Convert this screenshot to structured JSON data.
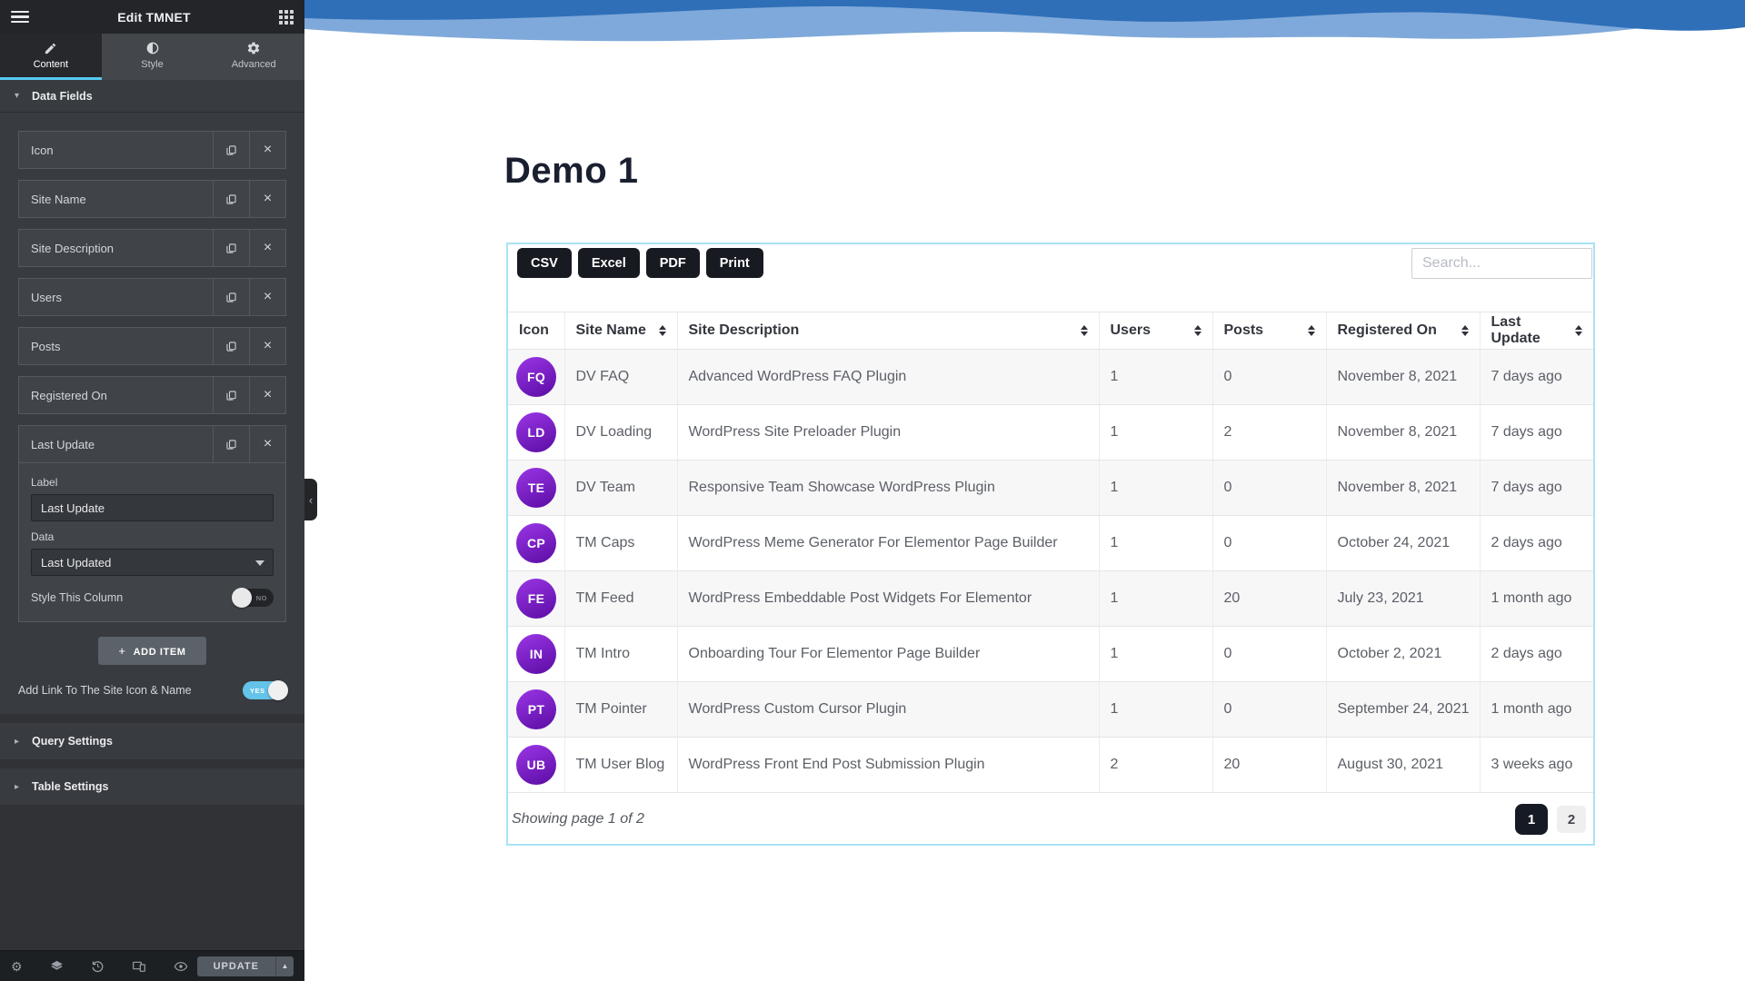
{
  "panel": {
    "title": "Edit TMNET",
    "tabs": [
      {
        "label": "Content",
        "icon": "pencil-icon",
        "active": true
      },
      {
        "label": "Style",
        "icon": "style-icon",
        "active": false
      },
      {
        "label": "Advanced",
        "icon": "gear-icon",
        "active": false
      }
    ],
    "data_fields_section": "Data Fields",
    "field_items": [
      "Icon",
      "Site Name",
      "Site Description",
      "Users",
      "Posts",
      "Registered On"
    ],
    "expanded_item": {
      "title": "Last Update",
      "label_field_label": "Label",
      "label_field_value": "Last Update",
      "data_field_label": "Data",
      "data_field_value": "Last Updated",
      "style_column_label": "Style This Column",
      "style_column_toggle": "NO"
    },
    "add_item_button": "ADD ITEM",
    "link_row": {
      "label": "Add Link To The Site Icon & Name",
      "toggle": "YES"
    },
    "collapsed_sections": [
      "Query Settings",
      "Table Settings"
    ],
    "footer": {
      "update_button": "UPDATE"
    }
  },
  "preview": {
    "heading": "Demo 1",
    "widget": {
      "export_buttons": [
        "CSV",
        "Excel",
        "PDF",
        "Print"
      ],
      "search_placeholder": "Search...",
      "columns": [
        {
          "label": "Icon",
          "sortable": false
        },
        {
          "label": "Site Name",
          "sortable": true
        },
        {
          "label": "Site Description",
          "sortable": true
        },
        {
          "label": "Users",
          "sortable": true
        },
        {
          "label": "Posts",
          "sortable": true
        },
        {
          "label": "Registered On",
          "sortable": true
        },
        {
          "label": "Last Update",
          "sortable": true
        }
      ],
      "rows": [
        {
          "initials": "FQ",
          "site_name": "DV FAQ",
          "description": "Advanced WordPress FAQ Plugin",
          "users": "1",
          "posts": "0",
          "registered_on": "November 8, 2021",
          "last_update": "7 days ago"
        },
        {
          "initials": "LD",
          "site_name": "DV Loading",
          "description": "WordPress Site Preloader Plugin",
          "users": "1",
          "posts": "2",
          "registered_on": "November 8, 2021",
          "last_update": "7 days ago"
        },
        {
          "initials": "TE",
          "site_name": "DV Team",
          "description": "Responsive Team Showcase WordPress Plugin",
          "users": "1",
          "posts": "0",
          "registered_on": "November 8, 2021",
          "last_update": "7 days ago"
        },
        {
          "initials": "CP",
          "site_name": "TM Caps",
          "description": "WordPress Meme Generator For Elementor Page Builder",
          "users": "1",
          "posts": "0",
          "registered_on": "October 24, 2021",
          "last_update": "2 days ago"
        },
        {
          "initials": "FE",
          "site_name": "TM Feed",
          "description": "WordPress Embeddable Post Widgets For Elementor",
          "users": "1",
          "posts": "20",
          "registered_on": "July 23, 2021",
          "last_update": "1 month ago"
        },
        {
          "initials": "IN",
          "site_name": "TM Intro",
          "description": "Onboarding Tour For Elementor Page Builder",
          "users": "1",
          "posts": "0",
          "registered_on": "October 2, 2021",
          "last_update": "2 days ago"
        },
        {
          "initials": "PT",
          "site_name": "TM Pointer",
          "description": "WordPress Custom Cursor Plugin",
          "users": "1",
          "posts": "0",
          "registered_on": "September 24, 2021",
          "last_update": "1 month ago"
        },
        {
          "initials": "UB",
          "site_name": "TM User Blog",
          "description": "WordPress Front End Post Submission Plugin",
          "users": "2",
          "posts": "20",
          "registered_on": "August 30, 2021",
          "last_update": "3 weeks ago"
        }
      ],
      "footer_text": "Showing page 1 of 2",
      "pagination": [
        {
          "label": "1",
          "active": true
        },
        {
          "label": "2",
          "active": false
        }
      ]
    }
  },
  "colors": {
    "accent_cyan": "#56c9f1",
    "toggle_on_blue": "#64c3e8",
    "avatar_purple_start": "#9b36e6",
    "avatar_purple_end": "#5a0ca3",
    "widget_selection_border": "#a9e2f6",
    "export_button_bg": "#171a21",
    "pagination_active_bg": "#161a24",
    "wave_dark_blue": "#2f6fb8",
    "wave_light_blue": "#7fa9da",
    "heading_navy": "#1a1f30"
  }
}
